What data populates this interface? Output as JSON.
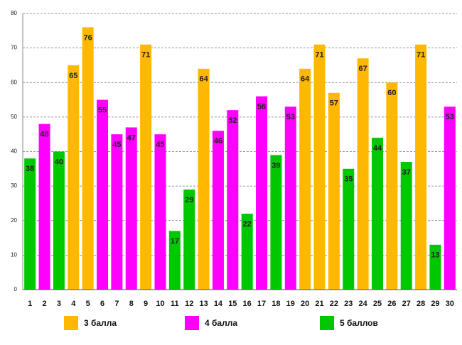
{
  "chart_data": {
    "type": "bar",
    "categories": [
      "1",
      "2",
      "3",
      "4",
      "5",
      "6",
      "7",
      "8",
      "9",
      "10",
      "11",
      "12",
      "13",
      "14",
      "15",
      "16",
      "17",
      "18",
      "19",
      "20",
      "21",
      "22",
      "23",
      "24",
      "25",
      "26",
      "27",
      "28",
      "29",
      "30"
    ],
    "series": [
      {
        "name": "3 балла",
        "color": "#ffb800",
        "values": [
          null,
          null,
          null,
          65,
          76,
          null,
          null,
          null,
          71,
          null,
          null,
          null,
          64,
          null,
          null,
          null,
          null,
          null,
          null,
          64,
          71,
          57,
          null,
          67,
          null,
          60,
          null,
          71,
          null,
          null
        ]
      },
      {
        "name": "4 балла",
        "color": "#ff00ff",
        "values": [
          null,
          48,
          null,
          null,
          null,
          55,
          45,
          47,
          null,
          45,
          null,
          null,
          null,
          46,
          52,
          null,
          56,
          null,
          53,
          null,
          null,
          null,
          null,
          null,
          null,
          null,
          null,
          null,
          null,
          53
        ]
      },
      {
        "name": "5 баллов",
        "color": "#00c800",
        "values": [
          38,
          null,
          40,
          null,
          null,
          null,
          null,
          null,
          null,
          null,
          17,
          29,
          null,
          null,
          null,
          22,
          null,
          39,
          null,
          null,
          null,
          null,
          35,
          null,
          44,
          null,
          37,
          null,
          13,
          null
        ]
      }
    ],
    "ylim": [
      0,
      80
    ],
    "yticks": [
      0,
      10,
      20,
      30,
      40,
      50,
      60,
      70,
      80
    ],
    "grid": true
  }
}
